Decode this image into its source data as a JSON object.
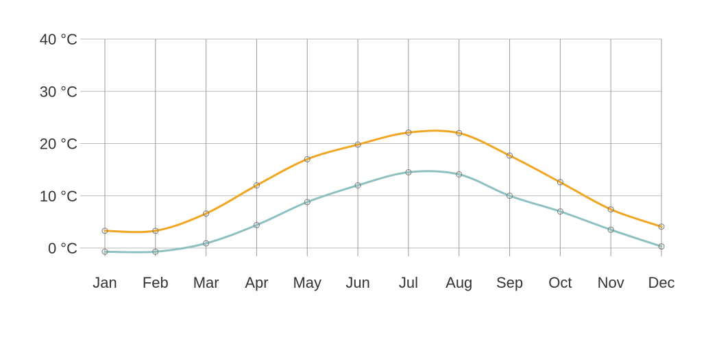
{
  "chart_data": {
    "type": "line",
    "categories": [
      "Jan",
      "Feb",
      "Mar",
      "Apr",
      "May",
      "Jun",
      "Jul",
      "Aug",
      "Sep",
      "Oct",
      "Nov",
      "Dec"
    ],
    "series": [
      {
        "values": [
          3.3,
          3.3,
          6.6,
          12.0,
          17.0,
          19.8,
          22.1,
          22.0,
          17.7,
          12.6,
          7.4,
          4.1
        ],
        "color": "#f0a622"
      },
      {
        "values": [
          -0.7,
          -0.7,
          0.9,
          4.4,
          8.8,
          12.0,
          14.5,
          14.1,
          10.0,
          7.0,
          3.5,
          0.3
        ],
        "color": "#8fc0c0"
      }
    ],
    "y_ticks": [
      "0 °C",
      "10 °C",
      "20 °C",
      "30 °C",
      "40 °C"
    ],
    "ylim": [
      0,
      40
    ],
    "grid": true,
    "smooth": true,
    "markers": "open-circle"
  }
}
